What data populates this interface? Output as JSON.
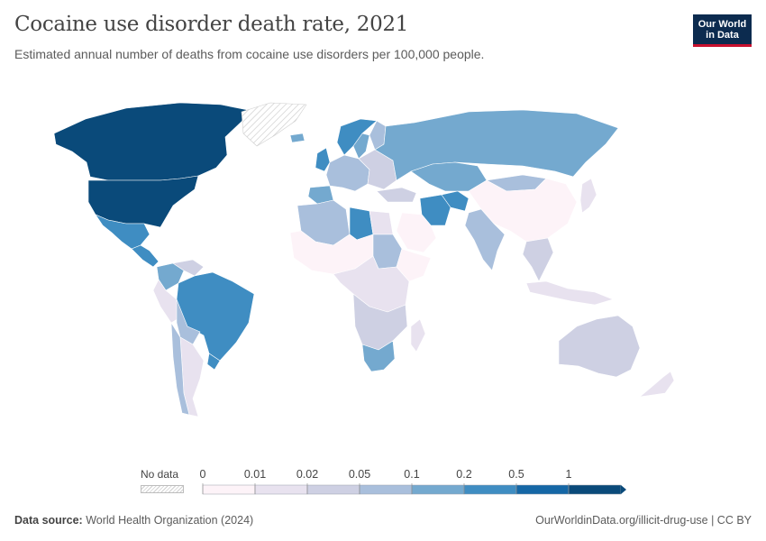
{
  "header": {
    "title": "Cocaine use disorder death rate, 2021",
    "subtitle": "Estimated annual number of deaths from cocaine use disorders per 100,000 people."
  },
  "logo": {
    "line1": "Our World",
    "line2": "in Data"
  },
  "legend": {
    "no_data_label": "No data",
    "ticks": [
      "0",
      "0.01",
      "0.02",
      "0.05",
      "0.1",
      "0.2",
      "0.5",
      "1"
    ],
    "bin_colors": [
      "#fdf3f8",
      "#e8e2ef",
      "#ced0e3",
      "#a9bfdc",
      "#74a9cf",
      "#3f8dc2",
      "#1567a6",
      "#0a4a7a"
    ]
  },
  "footer": {
    "source_label": "Data source:",
    "source_text": "World Health Organization (2024)",
    "url": "OurWorldinData.org/illicit-drug-use | CC BY"
  },
  "chart_data": {
    "type": "choropleth",
    "year": 2021,
    "bins": [
      0,
      0.01,
      0.02,
      0.05,
      0.1,
      0.2,
      0.5,
      1
    ],
    "regions": [
      {
        "name": "Canada",
        "bin": 7
      },
      {
        "name": "United States",
        "bin": 7
      },
      {
        "name": "Mexico",
        "bin": 5
      },
      {
        "name": "Central America",
        "bin": 5
      },
      {
        "name": "Colombia",
        "bin": 4
      },
      {
        "name": "Venezuela",
        "bin": 2
      },
      {
        "name": "Peru",
        "bin": 1
      },
      {
        "name": "Brazil",
        "bin": 5
      },
      {
        "name": "Bolivia",
        "bin": 3
      },
      {
        "name": "Argentina",
        "bin": 1
      },
      {
        "name": "Chile",
        "bin": 3
      },
      {
        "name": "Uruguay",
        "bin": 5
      },
      {
        "name": "Greenland",
        "bin": null
      },
      {
        "name": "Iceland",
        "bin": 4
      },
      {
        "name": "Norway",
        "bin": 5
      },
      {
        "name": "Sweden",
        "bin": 4
      },
      {
        "name": "Finland",
        "bin": 3
      },
      {
        "name": "United Kingdom",
        "bin": 5
      },
      {
        "name": "Spain",
        "bin": 4
      },
      {
        "name": "Western Europe",
        "bin": 3
      },
      {
        "name": "Eastern Europe",
        "bin": 2
      },
      {
        "name": "Russia",
        "bin": 4
      },
      {
        "name": "Kazakhstan",
        "bin": 4
      },
      {
        "name": "Mongolia",
        "bin": 3
      },
      {
        "name": "China",
        "bin": 0
      },
      {
        "name": "India",
        "bin": 3
      },
      {
        "name": "Iran",
        "bin": 5
      },
      {
        "name": "Afghanistan",
        "bin": 5
      },
      {
        "name": "Turkey",
        "bin": 2
      },
      {
        "name": "Saudi Arabia",
        "bin": 0
      },
      {
        "name": "North Africa West",
        "bin": 3
      },
      {
        "name": "Libya",
        "bin": 5
      },
      {
        "name": "Egypt",
        "bin": 1
      },
      {
        "name": "Sahel",
        "bin": 0
      },
      {
        "name": "Sudan",
        "bin": 3
      },
      {
        "name": "Horn of Africa",
        "bin": 0
      },
      {
        "name": "Central Africa",
        "bin": 1
      },
      {
        "name": "Southeast Africa",
        "bin": 2
      },
      {
        "name": "South Africa",
        "bin": 4
      },
      {
        "name": "Madagascar",
        "bin": 1
      },
      {
        "name": "Southeast Asia",
        "bin": 2
      },
      {
        "name": "Indonesia",
        "bin": 1
      },
      {
        "name": "Japan",
        "bin": 1
      },
      {
        "name": "Australia",
        "bin": 2
      },
      {
        "name": "New Zealand",
        "bin": 1
      }
    ]
  }
}
